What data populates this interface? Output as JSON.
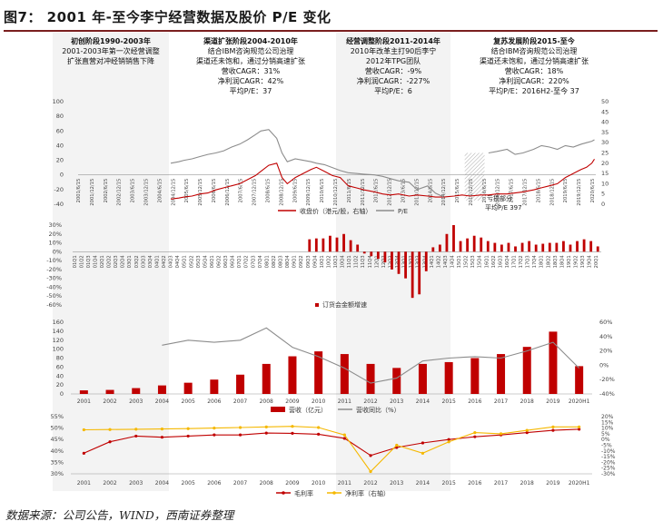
{
  "title": "图7： 2001 年-至今李宁经营数据及股价 P/E 变化",
  "source": "数据来源：公司公告，WIND，西南证券整理",
  "colors": {
    "red": "#c00000",
    "gray": "#8c8c8c",
    "gold": "#f5b800",
    "band": "#f2f2f2",
    "dark": "#7a1e1e"
  },
  "phases": [
    {
      "title": "初创阶段1990-2003年",
      "lines": [
        "2001-2003年第一次经营调整",
        "扩张直营对冲经销销售下降"
      ]
    },
    {
      "title": "渠道扩张阶段2004-2010年",
      "lines": [
        "结合IBM咨询规范公司治理",
        "渠道还未饱和，通过分销高速扩张",
        "营收CAGR：31%",
        "净利润CAGR：42%",
        "平均P/E：37"
      ]
    },
    {
      "title": "经营调整阶段2011-2014年",
      "lines": [
        "2010年改革主打90后李宁",
        "2012年TPG团队",
        "营收CAGR：-9%",
        "净利润CAGR：-227%",
        "平均P/E：6"
      ]
    },
    {
      "title": "复苏发展阶段2015-至今",
      "lines": [
        "结合IBM咨询规范公司治理",
        "渠道还未饱和，通过分销高速扩张",
        "营收CAGR：18%",
        "净利润CAGR：220%",
        "平均P/E：2016H2-至今 37"
      ]
    }
  ],
  "chart_data": [
    {
      "type": "line",
      "title": "",
      "ylim_left": [
        -40,
        100
      ],
      "yticks_left": [
        -40,
        -20,
        0,
        20,
        40,
        60,
        80,
        100
      ],
      "ylim_right": [
        0,
        50
      ],
      "yticks_right": [
        0,
        5,
        10,
        15,
        20,
        25,
        30,
        35,
        40,
        45,
        50
      ],
      "x_tick_labels": [
        "2001/6/15",
        "2001/12/15",
        "2002/6/15",
        "2002/12/15",
        "2003/6/15",
        "2003/12/15",
        "2004/6/15",
        "2004/12/15",
        "2005/6/15",
        "2005/12/15",
        "2006/6/15",
        "2006/12/15",
        "2007/6/15",
        "2007/12/15",
        "2008/6/15",
        "2008/12/15",
        "2009/6/15",
        "2009/12/15",
        "2010/6/15",
        "2010/12/15",
        "2011/6/15",
        "2011/12/15",
        "2012/6/15",
        "2012/12/15",
        "2013/6/15",
        "2013/12/15",
        "2014/6/15",
        "2014/12/15",
        "2015/6/15",
        "2015/12/15",
        "2016/6/15",
        "2016/12/15",
        "2017/6/15",
        "2017/12/15",
        "2018/6/15",
        "2018/12/15",
        "2019/6/15",
        "2019/12/15",
        "2020/6/15"
      ],
      "annotation": [
        "亏损部分",
        "平均P/E 397"
      ],
      "series": [
        {
          "name": "收盘价（港元/股，右轴）",
          "axis": "right",
          "x": [
            2004.5,
            2004.8,
            2005.0,
            2005.3,
            2005.6,
            2005.9,
            2006.2,
            2006.5,
            2006.8,
            2007.1,
            2007.4,
            2007.7,
            2007.9,
            2008.2,
            2008.5,
            2008.7,
            2008.9,
            2009.2,
            2009.5,
            2009.8,
            2010.0,
            2010.3,
            2010.6,
            2010.9,
            2011.2,
            2011.5,
            2011.8,
            2012.2,
            2012.5,
            2012.8,
            2013.1,
            2013.5,
            2013.8,
            2014.2,
            2014.5,
            2014.8,
            2015.2,
            2015.5,
            2015.8,
            2016.2,
            2016.5,
            2016.8,
            2017.2,
            2017.5,
            2017.8,
            2018.2,
            2018.5,
            2018.8,
            2019.1,
            2019.4,
            2019.7,
            2020.0,
            2020.2,
            2020.4,
            2020.5
          ],
          "values": [
            2.5,
            3,
            3.5,
            4,
            5,
            5.5,
            7,
            8,
            9,
            10,
            12,
            14,
            16,
            19,
            20,
            13,
            10,
            13,
            15,
            17,
            18,
            16,
            14,
            13,
            9,
            8,
            7,
            6,
            5,
            4.5,
            5,
            4,
            4.5,
            4,
            3.5,
            3.5,
            4,
            4.5,
            4,
            4.5,
            4.5,
            5,
            5,
            5.5,
            6,
            7,
            8,
            9,
            10,
            13,
            15,
            17,
            18,
            20,
            22
          ]
        },
        {
          "name": "P/E",
          "axis": "left",
          "x": [
            2004.5,
            2004.8,
            2005.0,
            2005.3,
            2005.6,
            2005.9,
            2006.2,
            2006.5,
            2006.8,
            2007.1,
            2007.4,
            2007.7,
            2007.9,
            2008.2,
            2008.5,
            2008.7,
            2008.9,
            2009.2,
            2009.5,
            2009.8,
            2010.0,
            2010.3,
            2010.6,
            2010.9,
            2011.2,
            2011.5,
            2011.8,
            2012.2,
            2012.5,
            2012.8,
            2013.1,
            2013.5,
            2013.8,
            2014.2,
            2014.5,
            2014.8,
            2016.5,
            2016.8,
            2017.2,
            2017.5,
            2017.8,
            2018.2,
            2018.5,
            2018.8,
            2019.1,
            2019.4,
            2019.7,
            2020.0,
            2020.2,
            2020.4,
            2020.5
          ],
          "values": [
            16,
            18,
            20,
            22,
            25,
            28,
            30,
            33,
            38,
            42,
            48,
            55,
            60,
            62,
            50,
            30,
            18,
            22,
            20,
            18,
            16,
            14,
            10,
            6,
            3,
            2,
            1,
            0,
            -2,
            -5,
            -8,
            -10,
            -20,
            -15,
            -25,
            -30,
            30,
            32,
            35,
            28,
            30,
            35,
            40,
            38,
            35,
            40,
            38,
            42,
            44,
            46,
            48
          ]
        }
      ]
    },
    {
      "type": "bar",
      "title": "",
      "categories": [
        "01Q1",
        "01Q2",
        "01Q3",
        "01Q4",
        "02Q1",
        "02Q2",
        "02Q3",
        "02Q4",
        "03Q1",
        "03Q2",
        "03Q3",
        "03Q4",
        "04Q1",
        "04Q2",
        "04Q3",
        "04Q4",
        "05Q1",
        "05Q2",
        "05Q3",
        "05Q4",
        "06Q1",
        "06Q2",
        "06Q3",
        "06Q4",
        "07Q1",
        "07Q2",
        "07Q3",
        "07Q4",
        "08Q1",
        "08Q2",
        "08Q3",
        "08Q4",
        "09Q1",
        "09Q2",
        "09Q3",
        "09Q4",
        "10Q1",
        "10Q2",
        "10Q3",
        "10Q4",
        "11Q1",
        "11Q2",
        "11Q3",
        "11Q4",
        "12Q1",
        "12Q2",
        "12Q3",
        "12Q4",
        "13Q1",
        "13Q2",
        "13Q3",
        "13Q4",
        "14Q1",
        "14Q2",
        "14Q3",
        "14Q4",
        "15Q1",
        "15Q2",
        "15Q3",
        "15Q4",
        "16Q1",
        "16Q2",
        "16Q3",
        "16Q4",
        "17Q1",
        "17Q2",
        "17Q3",
        "17Q4",
        "18Q1",
        "18Q2",
        "18Q3",
        "18Q4",
        "19Q1",
        "19Q2",
        "19Q3",
        "19Q4",
        "20Q1"
      ],
      "series": [
        {
          "name": "订货会金额增速",
          "values": [
            null,
            null,
            null,
            null,
            null,
            null,
            null,
            null,
            null,
            null,
            null,
            null,
            null,
            null,
            null,
            null,
            null,
            null,
            null,
            null,
            null,
            null,
            null,
            null,
            null,
            null,
            null,
            null,
            null,
            null,
            null,
            null,
            null,
            null,
            14,
            15,
            15,
            18,
            16,
            20,
            13,
            8,
            -2,
            -5,
            -8,
            -12,
            -20,
            -25,
            -30,
            -52,
            -48,
            -22,
            5,
            8,
            20,
            30,
            12,
            15,
            18,
            16,
            12,
            10,
            8,
            10,
            6,
            10,
            12,
            8,
            9,
            10,
            10,
            12,
            8,
            12,
            14,
            12,
            6
          ]
        }
      ],
      "ylim": [
        -60,
        30
      ],
      "yticks": [
        -60,
        -50,
        -40,
        -30,
        -20,
        -10,
        0,
        10,
        20,
        30
      ],
      "ytick_labels": [
        "-60%",
        "-50%",
        "-40%",
        "-30%",
        "-20%",
        "-10%",
        "0%",
        "10%",
        "20%",
        "30%"
      ]
    },
    {
      "type": "bar",
      "title": "",
      "categories": [
        "2001",
        "2002",
        "2003",
        "2004",
        "2005",
        "2006",
        "2007",
        "2008",
        "2009",
        "2010",
        "2011",
        "2012",
        "2013",
        "2014",
        "2015",
        "2016",
        "2017",
        "2018",
        "2019",
        "2020H1"
      ],
      "ylim_left": [
        0,
        160
      ],
      "yticks_left": [
        0,
        20,
        40,
        60,
        80,
        100,
        120,
        140,
        160
      ],
      "ylim_right": [
        -40,
        60
      ],
      "yticks_right": [
        -40,
        -20,
        0,
        20,
        40,
        60
      ],
      "ytick_labels_right": [
        "-40%",
        "-20%",
        "0%",
        "20%",
        "40%",
        "60%"
      ],
      "series": [
        {
          "name": "营收（亿元）",
          "type": "bar",
          "axis": "left",
          "values": [
            8,
            9,
            13,
            19,
            25,
            32,
            43,
            67,
            84,
            95,
            89,
            67,
            58,
            67,
            71,
            80,
            89,
            105,
            139,
            62
          ]
        },
        {
          "name": "营收同比（%）",
          "type": "line",
          "axis": "right",
          "values": [
            null,
            null,
            null,
            28,
            35,
            32,
            35,
            52,
            25,
            12,
            -4,
            -25,
            -18,
            6,
            10,
            12,
            10,
            20,
            32,
            -4
          ]
        }
      ]
    },
    {
      "type": "line",
      "title": "",
      "categories": [
        "2001",
        "2002",
        "2003",
        "2004",
        "2005",
        "2006",
        "2007",
        "2008",
        "2009",
        "2010",
        "2011",
        "2012",
        "2013",
        "2014",
        "2015",
        "2016",
        "2017",
        "2018",
        "2019",
        "2020H1"
      ],
      "ylim_left": [
        30,
        55
      ],
      "yticks_left": [
        30,
        35,
        40,
        45,
        50,
        55
      ],
      "ytick_labels_left": [
        "30%",
        "35%",
        "40%",
        "45%",
        "50%",
        "55%"
      ],
      "ylim_right": [
        -30,
        20
      ],
      "yticks_right": [
        -30,
        -25,
        -20,
        -15,
        -10,
        -5,
        0,
        5,
        10,
        15,
        20
      ],
      "ytick_labels_right": [
        "-30%",
        "-25%",
        "-20%",
        "-15%",
        "-10%",
        "-5%",
        "0%",
        "5%",
        "10%",
        "15%",
        "20%"
      ],
      "series": [
        {
          "name": "毛利率",
          "axis": "left",
          "values": [
            39,
            44,
            46.5,
            46,
            46.5,
            47,
            47,
            47.8,
            47.7,
            47.3,
            45.5,
            38,
            41.5,
            43.5,
            45,
            46.2,
            47,
            48,
            49,
            49.5
          ]
        },
        {
          "name": "净利率（右轴）",
          "axis": "right",
          "values": [
            8.5,
            8.7,
            9,
            9.2,
            9.5,
            10,
            10.5,
            11,
            11.5,
            10.5,
            4,
            -28,
            -5,
            -12,
            -2,
            6,
            5,
            8,
            11,
            11
          ]
        }
      ]
    }
  ]
}
